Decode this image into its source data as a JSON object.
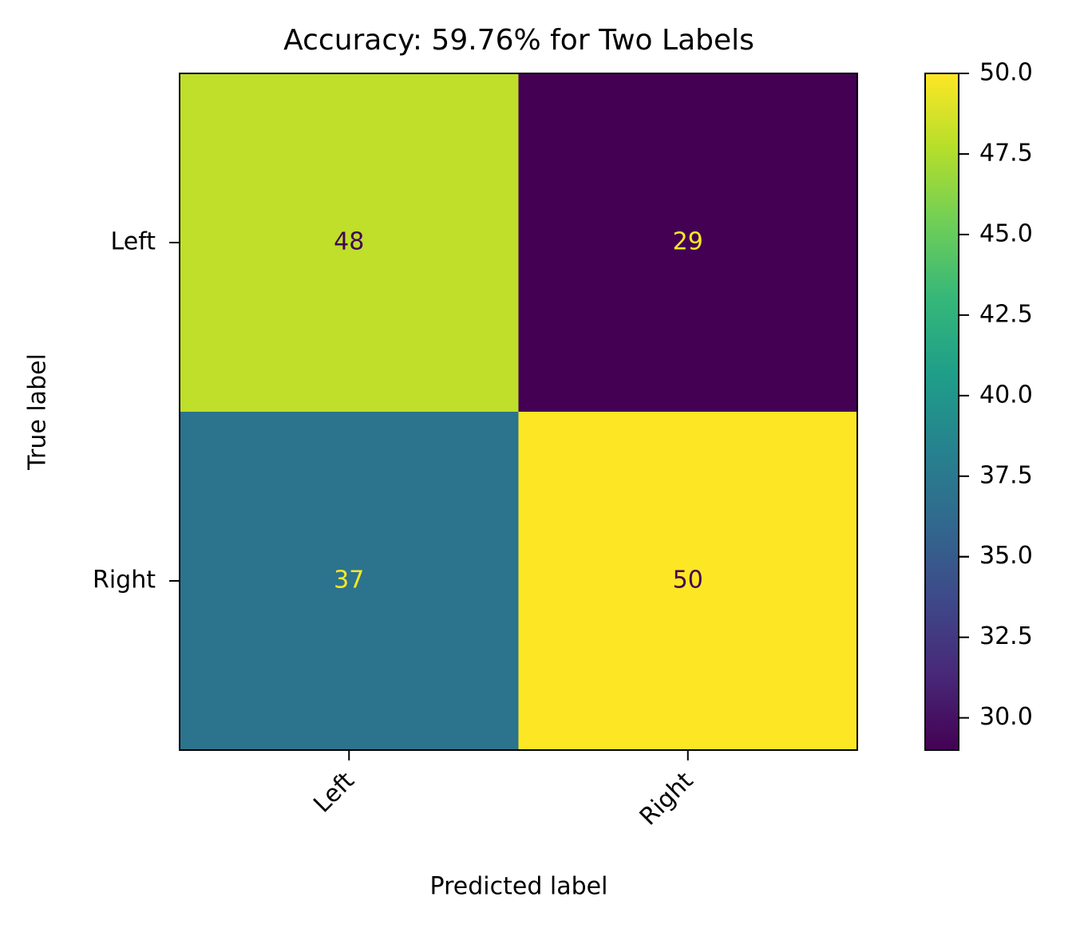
{
  "chart_data": {
    "type": "heatmap",
    "title": "Accuracy: 59.76% for Two Labels",
    "x_label": "Predicted label",
    "y_label": "True label",
    "x_categories": [
      "Left",
      "Right"
    ],
    "y_categories": [
      "Left",
      "Right"
    ],
    "values": [
      [
        48,
        29
      ],
      [
        37,
        50
      ]
    ],
    "colormap": "viridis",
    "clim": [
      29,
      50
    ],
    "cticks": [
      {
        "value": 30,
        "label": "30.0"
      },
      32.5,
      35,
      {
        "value": 35,
        "label": "35.0"
      },
      37.5,
      {
        "value": 40,
        "label": "40.0"
      },
      42.5,
      {
        "value": 45,
        "label": "45.0"
      },
      47.5,
      {
        "value": 50,
        "label": "50.0"
      }
    ]
  }
}
